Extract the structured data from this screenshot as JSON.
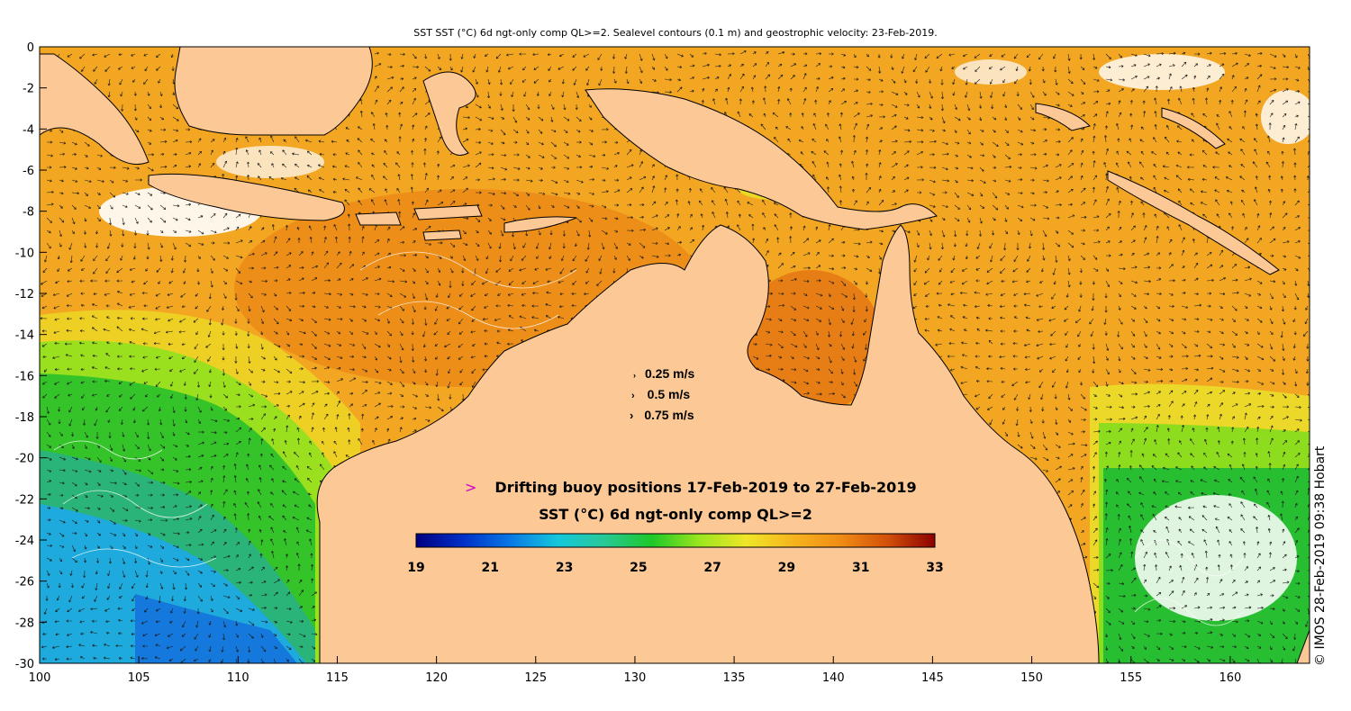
{
  "title": "SST SST (°C) 6d ngt-only comp QL>=2. Sealevel contours (0.1 m) and geostrophic velocity: 23-Feb-2019.",
  "axes": {
    "x_ticks": [
      "100",
      "105",
      "110",
      "115",
      "120",
      "125",
      "130",
      "135",
      "140",
      "145",
      "150",
      "155",
      "160"
    ],
    "y_ticks": [
      "0",
      "-2",
      "-4",
      "-6",
      "-8",
      "-10",
      "-12",
      "-14",
      "-16",
      "-18",
      "-20",
      "-22",
      "-24",
      "-26",
      "-28",
      "-30"
    ],
    "lon_range": [
      100,
      164
    ],
    "lat_range": [
      -30,
      0
    ]
  },
  "velocity_legend": [
    {
      "arrow": "›",
      "label": "0.25 m/s"
    },
    {
      "arrow": "›",
      "label": "0.5 m/s"
    },
    {
      "arrow": "›",
      "label": "0.75 m/s"
    }
  ],
  "buoy_legend": {
    "marker": ">",
    "label": "Drifting buoy positions 17-Feb-2019 to 27-Feb-2019",
    "marker_color": "#cc00cc"
  },
  "colorbar": {
    "title": "SST (°C) 6d ngt-only comp QL>=2",
    "ticks": [
      "19",
      "21",
      "23",
      "25",
      "27",
      "29",
      "31",
      "33"
    ],
    "range": [
      19,
      33
    ],
    "colors": [
      "#000080",
      "#0030c8",
      "#0a78e6",
      "#14c8dc",
      "#28c896",
      "#1ec828",
      "#9ae61e",
      "#f0e628",
      "#f5b41e",
      "#f08c14",
      "#d2500a",
      "#8c0000"
    ]
  },
  "credit": "© IMOS 28-Feb-2019 09:38 Hobart",
  "colors": {
    "land": "#fcc896",
    "frame": "#000000",
    "background": "#ffffff"
  }
}
